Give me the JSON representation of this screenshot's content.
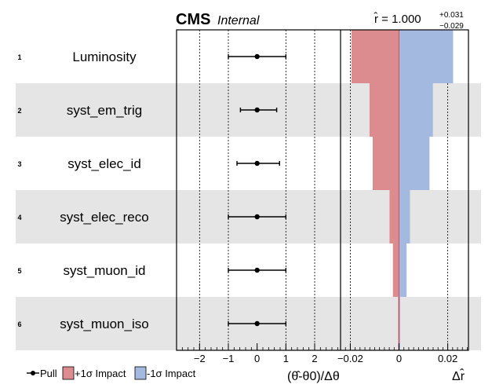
{
  "header": {
    "cms": "CMS",
    "internal": "Internal",
    "rhat_label": "r̂ = 1.000",
    "rhat_up": "+0.031",
    "rhat_down": "−0.029"
  },
  "legend": {
    "pull": "Pull",
    "plus_impact": "+1σ Impact",
    "minus_impact": "-1σ Impact"
  },
  "colors": {
    "band": "#e5e5e5",
    "plus_impact": "#dc8c8f",
    "minus_impact": "#a3b9e0",
    "point": "#000000"
  },
  "chart_data": [
    {
      "type": "scatter",
      "name": "pulls",
      "xlabel": "(θ̂-θ0)/Δθ",
      "xlim": [
        -2.8,
        2.9
      ],
      "xticks": [
        -2,
        -1,
        0,
        1,
        2
      ],
      "xtick_labels": [
        "−2",
        "−1",
        "0",
        "1",
        "2"
      ],
      "grid_lines": [
        -2,
        -1,
        1,
        2
      ],
      "categories": [
        "Luminosity",
        "syst_em_trig",
        "syst_elec_id",
        "syst_elec_reco",
        "syst_muon_id",
        "syst_muon_iso"
      ],
      "ranks": [
        "1",
        "2",
        "3",
        "4",
        "5",
        "6"
      ],
      "values": [
        0,
        0,
        0,
        0,
        0,
        0
      ],
      "err_lo": [
        1.0,
        0.58,
        0.7,
        1.0,
        1.0,
        1.0
      ],
      "err_hi": [
        1.0,
        0.68,
        0.78,
        1.0,
        1.0,
        1.0
      ]
    },
    {
      "type": "bar",
      "name": "impacts",
      "xlabel": "Δr̂",
      "xlim": [
        -0.024,
        0.0285
      ],
      "xticks": [
        -0.02,
        0,
        0.02
      ],
      "xtick_labels": [
        "−0.02",
        "0",
        "0.02"
      ],
      "grid_lines": [
        -0.02,
        0.02
      ],
      "series": [
        {
          "name": "+1σ Impact",
          "values": [
            -0.0195,
            -0.0121,
            -0.0108,
            -0.0039,
            -0.0025,
            -0.0004
          ]
        },
        {
          "name": "-1σ Impact",
          "values": [
            0.0222,
            0.0139,
            0.0125,
            0.0045,
            0.0031,
            0.0005
          ]
        }
      ]
    }
  ]
}
